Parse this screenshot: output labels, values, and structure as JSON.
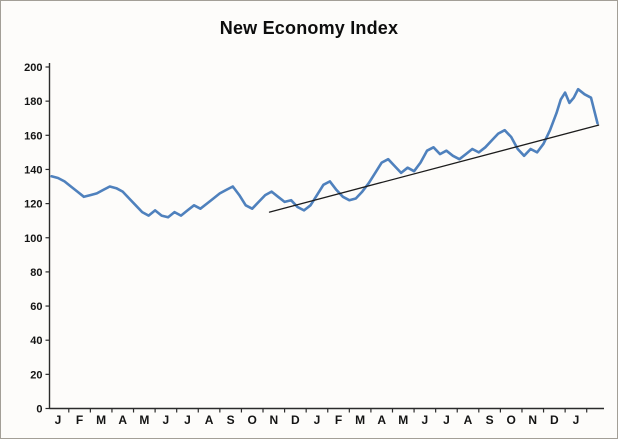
{
  "title": "New Economy Index",
  "colors": {
    "line": "#4f81bd",
    "trend": "#1c1c1c",
    "axis": "#2b2b2b",
    "text": "#141414",
    "background": "#fdfcfa",
    "border": "#a39f97"
  },
  "chart_data": {
    "type": "line",
    "title": "New Economy Index",
    "x_tick_labels": [
      "J",
      "F",
      "M",
      "A",
      "M",
      "J",
      "J",
      "A",
      "S",
      "O",
      "N",
      "D",
      "J",
      "F",
      "M",
      "A",
      "M",
      "J",
      "J",
      "A",
      "S",
      "O",
      "N",
      "D",
      "J"
    ],
    "y_ticks": [
      0,
      20,
      40,
      60,
      80,
      100,
      120,
      140,
      160,
      180,
      200
    ],
    "ylim": [
      0,
      200
    ],
    "grid": false,
    "legend": "none",
    "series": [
      {
        "name": "New Economy Index",
        "color": "#4f81bd",
        "stroke_width": 2.6,
        "points": [
          [
            -0.3,
            136
          ],
          [
            0.0,
            135
          ],
          [
            0.3,
            133
          ],
          [
            0.6,
            130
          ],
          [
            0.9,
            127
          ],
          [
            1.2,
            124
          ],
          [
            1.5,
            125
          ],
          [
            1.8,
            126
          ],
          [
            2.1,
            128
          ],
          [
            2.4,
            130
          ],
          [
            2.7,
            129
          ],
          [
            3.0,
            127
          ],
          [
            3.3,
            123
          ],
          [
            3.6,
            119
          ],
          [
            3.9,
            115
          ],
          [
            4.2,
            113
          ],
          [
            4.5,
            116
          ],
          [
            4.8,
            113
          ],
          [
            5.1,
            112
          ],
          [
            5.4,
            115
          ],
          [
            5.7,
            113
          ],
          [
            6.0,
            116
          ],
          [
            6.3,
            119
          ],
          [
            6.6,
            117
          ],
          [
            6.9,
            120
          ],
          [
            7.2,
            123
          ],
          [
            7.5,
            126
          ],
          [
            7.8,
            128
          ],
          [
            8.1,
            130
          ],
          [
            8.4,
            125
          ],
          [
            8.7,
            119
          ],
          [
            9.0,
            117
          ],
          [
            9.3,
            121
          ],
          [
            9.6,
            125
          ],
          [
            9.9,
            127
          ],
          [
            10.2,
            124
          ],
          [
            10.5,
            121
          ],
          [
            10.8,
            122
          ],
          [
            11.1,
            118
          ],
          [
            11.4,
            116
          ],
          [
            11.7,
            119
          ],
          [
            12.0,
            125
          ],
          [
            12.3,
            131
          ],
          [
            12.6,
            133
          ],
          [
            12.9,
            128
          ],
          [
            13.2,
            124
          ],
          [
            13.5,
            122
          ],
          [
            13.8,
            123
          ],
          [
            14.1,
            127
          ],
          [
            14.4,
            132
          ],
          [
            14.7,
            138
          ],
          [
            15.0,
            144
          ],
          [
            15.3,
            146
          ],
          [
            15.6,
            142
          ],
          [
            15.9,
            138
          ],
          [
            16.2,
            141
          ],
          [
            16.5,
            139
          ],
          [
            16.8,
            144
          ],
          [
            17.1,
            151
          ],
          [
            17.4,
            153
          ],
          [
            17.7,
            149
          ],
          [
            18.0,
            151
          ],
          [
            18.3,
            148
          ],
          [
            18.6,
            146
          ],
          [
            18.9,
            149
          ],
          [
            19.2,
            152
          ],
          [
            19.5,
            150
          ],
          [
            19.8,
            153
          ],
          [
            20.1,
            157
          ],
          [
            20.4,
            161
          ],
          [
            20.7,
            163
          ],
          [
            21.0,
            159
          ],
          [
            21.3,
            152
          ],
          [
            21.6,
            148
          ],
          [
            21.9,
            152
          ],
          [
            22.2,
            150
          ],
          [
            22.5,
            155
          ],
          [
            22.8,
            163
          ],
          [
            23.1,
            173
          ],
          [
            23.3,
            181
          ],
          [
            23.5,
            185
          ],
          [
            23.7,
            179
          ],
          [
            23.9,
            182
          ],
          [
            24.1,
            187
          ],
          [
            24.4,
            184
          ],
          [
            24.7,
            182
          ],
          [
            25.0,
            167
          ]
        ]
      },
      {
        "name": "Linear trend line",
        "color": "#1c1c1c",
        "stroke_width": 1.3,
        "points": [
          [
            9.8,
            115
          ],
          [
            25.05,
            166
          ]
        ]
      }
    ]
  }
}
